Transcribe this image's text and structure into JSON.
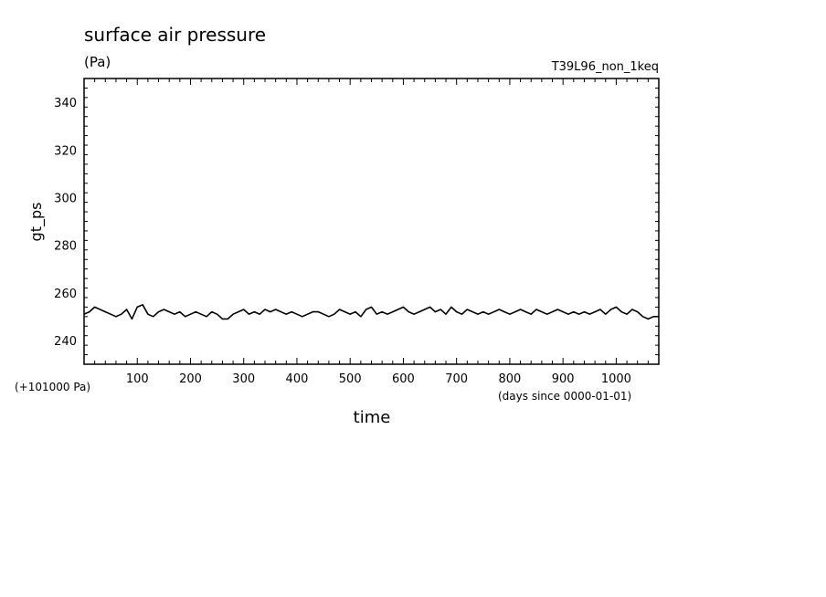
{
  "chart_data": {
    "type": "line",
    "title": "surface air pressure",
    "units": "(Pa)",
    "run_name": "T39L96_non_1keq",
    "ylabel": "gt_ps",
    "xlabel": "time",
    "offset_note": "(+101000 Pa)",
    "x_units_note": "(days since 0000-01-01)",
    "xlim": [
      0,
      1080
    ],
    "ylim": [
      230,
      350
    ],
    "x_ticks": [
      100,
      200,
      300,
      400,
      500,
      600,
      700,
      800,
      900,
      1000
    ],
    "y_ticks": [
      240,
      260,
      280,
      300,
      320,
      340
    ],
    "series": [
      {
        "x": [
          0,
          10,
          20,
          30,
          40,
          50,
          60,
          70,
          80,
          90,
          100,
          110,
          120,
          130,
          140,
          150,
          160,
          170,
          180,
          190,
          200,
          210,
          220,
          230,
          240,
          250,
          260,
          270,
          280,
          290,
          300,
          310,
          320,
          330,
          340,
          350,
          360,
          370,
          380,
          390,
          400,
          410,
          420,
          430,
          440,
          450,
          460,
          470,
          480,
          490,
          500,
          510,
          520,
          530,
          540,
          550,
          560,
          570,
          580,
          590,
          600,
          610,
          620,
          630,
          640,
          650,
          660,
          670,
          680,
          690,
          700,
          710,
          720,
          730,
          740,
          750,
          760,
          770,
          780,
          790,
          800,
          810,
          820,
          830,
          840,
          850,
          860,
          870,
          880,
          890,
          900,
          910,
          920,
          930,
          940,
          950,
          960,
          970,
          980,
          990,
          1000,
          1010,
          1020,
          1030,
          1040,
          1050,
          1060,
          1070,
          1080
        ],
        "values": [
          251,
          252,
          254,
          253,
          252,
          251,
          250,
          251,
          253,
          249,
          254,
          255,
          251,
          250,
          252,
          253,
          252,
          251,
          252,
          250,
          251,
          252,
          251,
          250,
          252,
          251,
          249,
          249,
          251,
          252,
          253,
          251,
          252,
          251,
          253,
          252,
          253,
          252,
          251,
          252,
          251,
          250,
          251,
          252,
          252,
          251,
          250,
          251,
          253,
          252,
          251,
          252,
          250,
          253,
          254,
          251,
          252,
          251,
          252,
          253,
          254,
          252,
          251,
          252,
          253,
          254,
          252,
          253,
          251,
          254,
          252,
          251,
          253,
          252,
          251,
          252,
          251,
          252,
          253,
          252,
          251,
          252,
          253,
          252,
          251,
          253,
          252,
          251,
          252,
          253,
          252,
          251,
          252,
          251,
          252,
          251,
          252,
          253,
          251,
          253,
          254,
          252,
          251,
          253,
          252,
          250,
          249,
          250,
          250
        ]
      }
    ]
  }
}
